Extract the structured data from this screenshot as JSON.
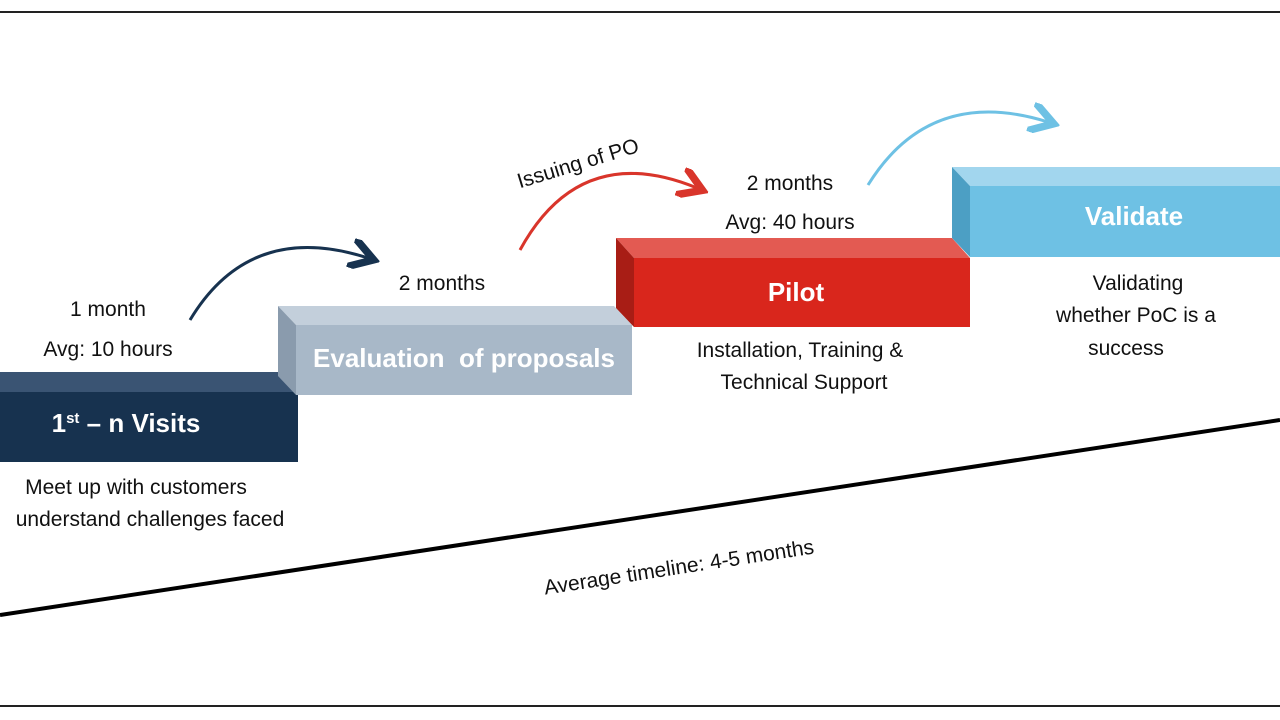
{
  "steps": [
    {
      "title": {
        "main": "1",
        "sup": "st",
        "rest": " – n Visits"
      },
      "duration": [
        "1 month",
        "Avg: 10 hours"
      ],
      "description": [
        "Meet up with customers",
        "understand challenges faced"
      ]
    },
    {
      "title": "Evaluation  of proposals",
      "duration": [
        "2 months"
      ]
    },
    {
      "title": "Pilot",
      "duration": [
        "2 months",
        "Avg: 40 hours"
      ],
      "description": [
        "Installation, Training &",
        "Technical Support"
      ]
    },
    {
      "title": "Validate",
      "description": [
        "Validating",
        "whether PoC is a",
        "success"
      ]
    }
  ],
  "transition_label": "Issuing of PO",
  "timeline_label": "Average timeline: 4-5 months"
}
